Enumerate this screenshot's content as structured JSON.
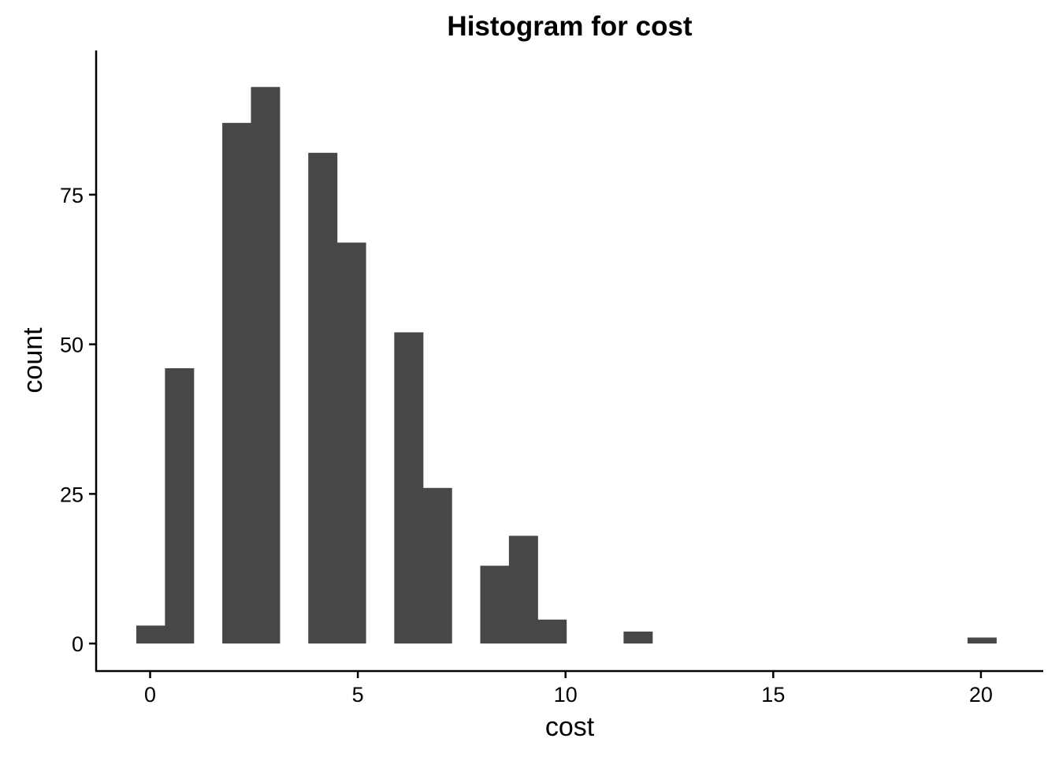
{
  "chart_data": {
    "type": "bar",
    "title": "Histogram for cost",
    "xlabel": "cost",
    "ylabel": "count",
    "xlim": [
      -1.3,
      21.5
    ],
    "ylim": [
      -4.6,
      99.1
    ],
    "xticks": [
      0,
      5,
      10,
      15,
      20
    ],
    "yticks": [
      0,
      25,
      50,
      75
    ],
    "grid": false,
    "bar_color": "#474747",
    "bins": [
      {
        "x0": -0.333,
        "x1": 0.357,
        "count": 3
      },
      {
        "x0": 0.357,
        "x1": 1.047,
        "count": 46
      },
      {
        "x0": 1.047,
        "x1": 1.737,
        "count": 0
      },
      {
        "x0": 1.737,
        "x1": 2.427,
        "count": 87
      },
      {
        "x0": 2.427,
        "x1": 3.117,
        "count": 93
      },
      {
        "x0": 3.117,
        "x1": 3.807,
        "count": 0
      },
      {
        "x0": 3.807,
        "x1": 4.497,
        "count": 82
      },
      {
        "x0": 4.497,
        "x1": 5.187,
        "count": 67
      },
      {
        "x0": 5.187,
        "x1": 5.877,
        "count": 0
      },
      {
        "x0": 5.877,
        "x1": 6.567,
        "count": 52
      },
      {
        "x0": 6.567,
        "x1": 7.257,
        "count": 26
      },
      {
        "x0": 7.257,
        "x1": 7.947,
        "count": 0
      },
      {
        "x0": 7.947,
        "x1": 8.637,
        "count": 13
      },
      {
        "x0": 8.637,
        "x1": 9.327,
        "count": 18
      },
      {
        "x0": 9.327,
        "x1": 10.017,
        "count": 4
      },
      {
        "x0": 10.017,
        "x1": 10.707,
        "count": 0
      },
      {
        "x0": 10.707,
        "x1": 11.397,
        "count": 0
      },
      {
        "x0": 11.397,
        "x1": 12.087,
        "count": 2
      },
      {
        "x0": 12.087,
        "x1": 12.777,
        "count": 0
      },
      {
        "x0": 12.777,
        "x1": 13.467,
        "count": 0
      },
      {
        "x0": 13.467,
        "x1": 14.157,
        "count": 0
      },
      {
        "x0": 14.157,
        "x1": 14.847,
        "count": 0
      },
      {
        "x0": 14.847,
        "x1": 15.537,
        "count": 0
      },
      {
        "x0": 15.537,
        "x1": 16.227,
        "count": 0
      },
      {
        "x0": 16.227,
        "x1": 16.917,
        "count": 0
      },
      {
        "x0": 16.917,
        "x1": 17.607,
        "count": 0
      },
      {
        "x0": 17.607,
        "x1": 18.297,
        "count": 0
      },
      {
        "x0": 18.297,
        "x1": 18.987,
        "count": 0
      },
      {
        "x0": 18.987,
        "x1": 19.677,
        "count": 0
      },
      {
        "x0": 19.677,
        "x1": 20.367,
        "count": 1
      }
    ]
  }
}
